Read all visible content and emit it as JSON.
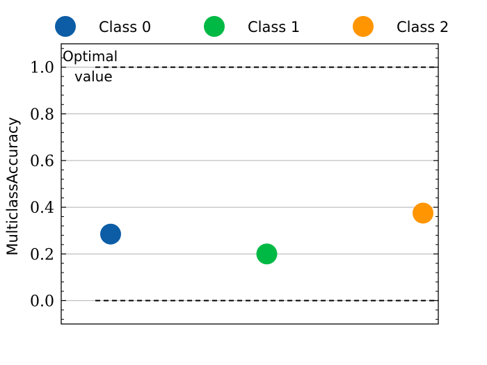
{
  "chart_data": {
    "type": "scatter",
    "title": "",
    "xlabel": "",
    "ylabel": "MulticlassAccuracy",
    "ylim": [
      -0.1,
      1.1
    ],
    "yticks": [
      0.0,
      0.2,
      0.4,
      0.6,
      0.8,
      1.0
    ],
    "ytick_labels": [
      "0.0",
      "0.2",
      "0.4",
      "0.6",
      "0.8",
      "1.0"
    ],
    "grid": "horizontal",
    "legend_position": "top",
    "series": [
      {
        "name": "Class 0",
        "color": "#0C5DA5",
        "value": 0.285
      },
      {
        "name": "Class 1",
        "color": "#00B945",
        "value": 0.2
      },
      {
        "name": "Class 2",
        "color": "#FF9500",
        "value": 0.375
      }
    ],
    "reference_lines": [
      {
        "y": 1.0,
        "style": "dashed"
      },
      {
        "y": 0.0,
        "style": "dashed"
      }
    ],
    "annotation": {
      "line1": "Optimal",
      "line2": "value"
    }
  }
}
